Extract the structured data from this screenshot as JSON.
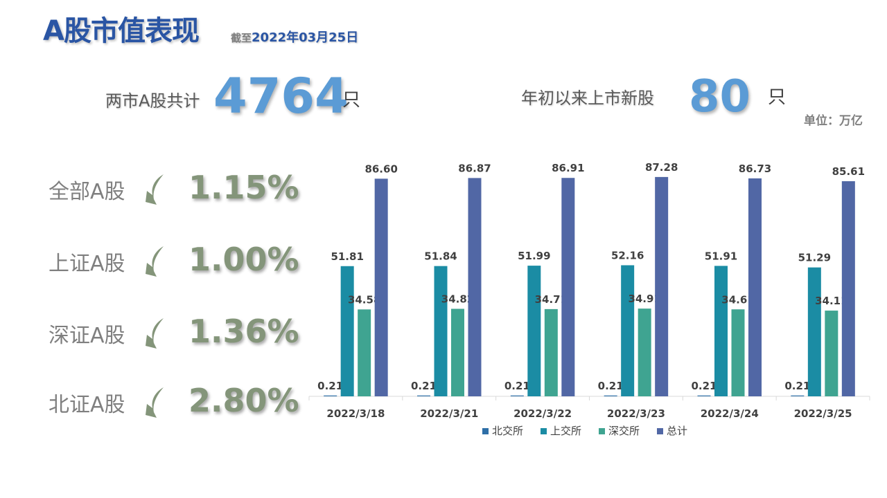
{
  "header": {
    "title": "A股市值表现",
    "asof_prefix": "截至",
    "asof_date": "2022年03月25日"
  },
  "stats": {
    "total_label": "两市A股共计",
    "total_value": "4764",
    "total_unit": "只",
    "ipo_label": "年初以来上市新股",
    "ipo_value": "80",
    "ipo_unit": "只"
  },
  "unit_note": "单位：万亿",
  "performance": [
    {
      "name": "全部A股",
      "value": "1.15%",
      "direction": "down"
    },
    {
      "name": "上证A股",
      "value": "1.00%",
      "direction": "down"
    },
    {
      "name": "深证A股",
      "value": "1.36%",
      "direction": "down"
    },
    {
      "name": "北证A股",
      "value": "2.80%",
      "direction": "down"
    }
  ],
  "colors": {
    "title": "#2a55a4",
    "big_number": "#5b9bd5",
    "perf_value": "#84957a",
    "arrow": "#84957a"
  },
  "chart_data": {
    "type": "bar",
    "categories": [
      "2022/3/18",
      "2022/3/21",
      "2022/3/22",
      "2022/3/23",
      "2022/3/24",
      "2022/3/25"
    ],
    "series": [
      {
        "name": "北交所",
        "color": "#2e6fa7",
        "values": [
          0.21,
          0.21,
          0.21,
          0.21,
          0.21,
          0.21
        ]
      },
      {
        "name": "上交所",
        "color": "#1b8ca4",
        "values": [
          51.81,
          51.84,
          51.99,
          52.16,
          51.91,
          51.29
        ]
      },
      {
        "name": "深交所",
        "color": "#3fa491",
        "values": [
          34.58,
          34.82,
          34.71,
          34.91,
          34.61,
          34.11
        ]
      },
      {
        "name": "总计",
        "color": "#5167a5",
        "values": [
          86.6,
          86.87,
          86.91,
          87.28,
          86.73,
          85.61
        ]
      }
    ],
    "data_labels": [
      [
        "0.21",
        "0.21",
        "0.21",
        "0.21",
        "0.21",
        "0.21"
      ],
      [
        "51.81",
        "51.84",
        "51.99",
        "52.16",
        "51.91",
        "51.29"
      ],
      [
        "34.58",
        "34.82",
        "34.71",
        "34.91",
        "34.61",
        "34.11"
      ],
      [
        "86.60",
        "86.87",
        "86.91",
        "87.28",
        "86.73",
        "85.61"
      ]
    ],
    "ylim": [
      0,
      90
    ],
    "grid": false,
    "legend_position": "bottom"
  }
}
